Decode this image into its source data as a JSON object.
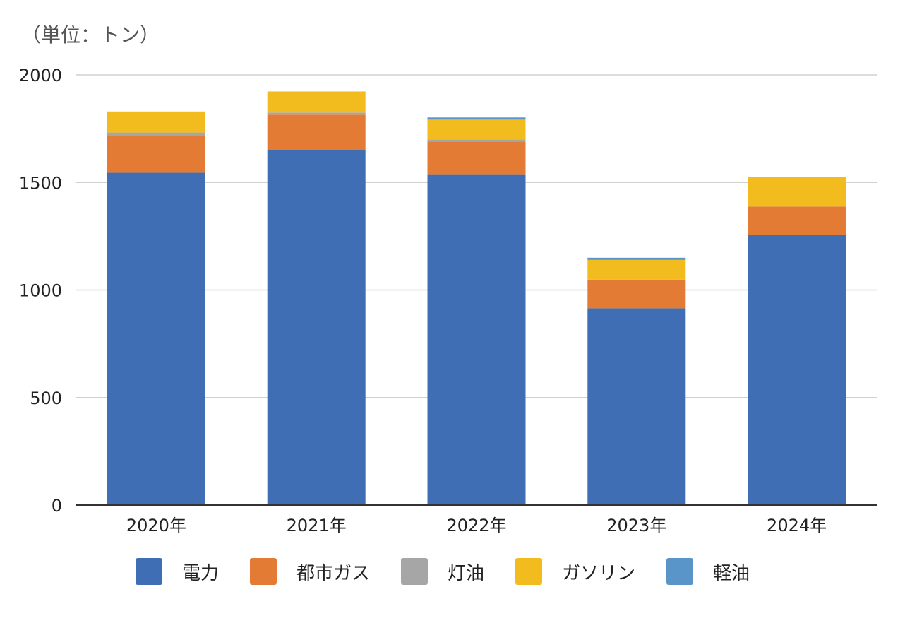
{
  "unit_label": "（単位：トン）",
  "chart_data": {
    "type": "bar",
    "stacked": true,
    "categories": [
      "2020年",
      "2021年",
      "2022年",
      "2023年",
      "2024年"
    ],
    "series": [
      {
        "name": "電力",
        "color": "#3f6eb5",
        "values": [
          1545,
          1650,
          1535,
          915,
          1255
        ]
      },
      {
        "name": "都市ガス",
        "color": "#e47b34",
        "values": [
          175,
          165,
          155,
          133,
          133
        ]
      },
      {
        "name": "灯油",
        "color": "#a6a6a6",
        "values": [
          12,
          10,
          10,
          0,
          0
        ]
      },
      {
        "name": "ガソリン",
        "color": "#f3bc1e",
        "values": [
          98,
          98,
          92,
          92,
          137
        ]
      },
      {
        "name": "軽油",
        "color": "#5a95c9",
        "values": [
          0,
          0,
          10,
          10,
          0
        ]
      }
    ],
    "ylim": [
      0,
      2000
    ],
    "yticks": [
      0,
      500,
      1000,
      1500,
      2000
    ],
    "grid": true,
    "legend_position": "bottom"
  }
}
